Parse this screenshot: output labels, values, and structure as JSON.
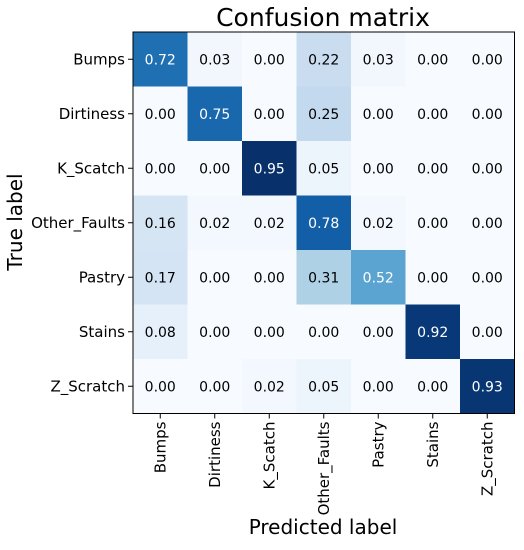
{
  "chart_data": {
    "type": "heatmap",
    "title": "Confusion matrix",
    "xlabel": "Predicted label",
    "ylabel": "True label",
    "x_categories": [
      "Bumps",
      "Dirtiness",
      "K_Scatch",
      "Other_Faults",
      "Pastry",
      "Stains",
      "Z_Scratch"
    ],
    "y_categories": [
      "Bumps",
      "Dirtiness",
      "K_Scatch",
      "Other_Faults",
      "Pastry",
      "Stains",
      "Z_Scratch"
    ],
    "values": [
      [
        0.72,
        0.03,
        0.0,
        0.22,
        0.03,
        0.0,
        0.0
      ],
      [
        0.0,
        0.75,
        0.0,
        0.25,
        0.0,
        0.0,
        0.0
      ],
      [
        0.0,
        0.0,
        0.95,
        0.05,
        0.0,
        0.0,
        0.0
      ],
      [
        0.16,
        0.02,
        0.02,
        0.78,
        0.02,
        0.0,
        0.0
      ],
      [
        0.17,
        0.0,
        0.0,
        0.31,
        0.52,
        0.0,
        0.0
      ],
      [
        0.08,
        0.0,
        0.0,
        0.0,
        0.0,
        0.92,
        0.0
      ],
      [
        0.0,
        0.0,
        0.02,
        0.05,
        0.0,
        0.0,
        0.93
      ]
    ],
    "colormap": "Blues",
    "value_format": "0.00"
  }
}
